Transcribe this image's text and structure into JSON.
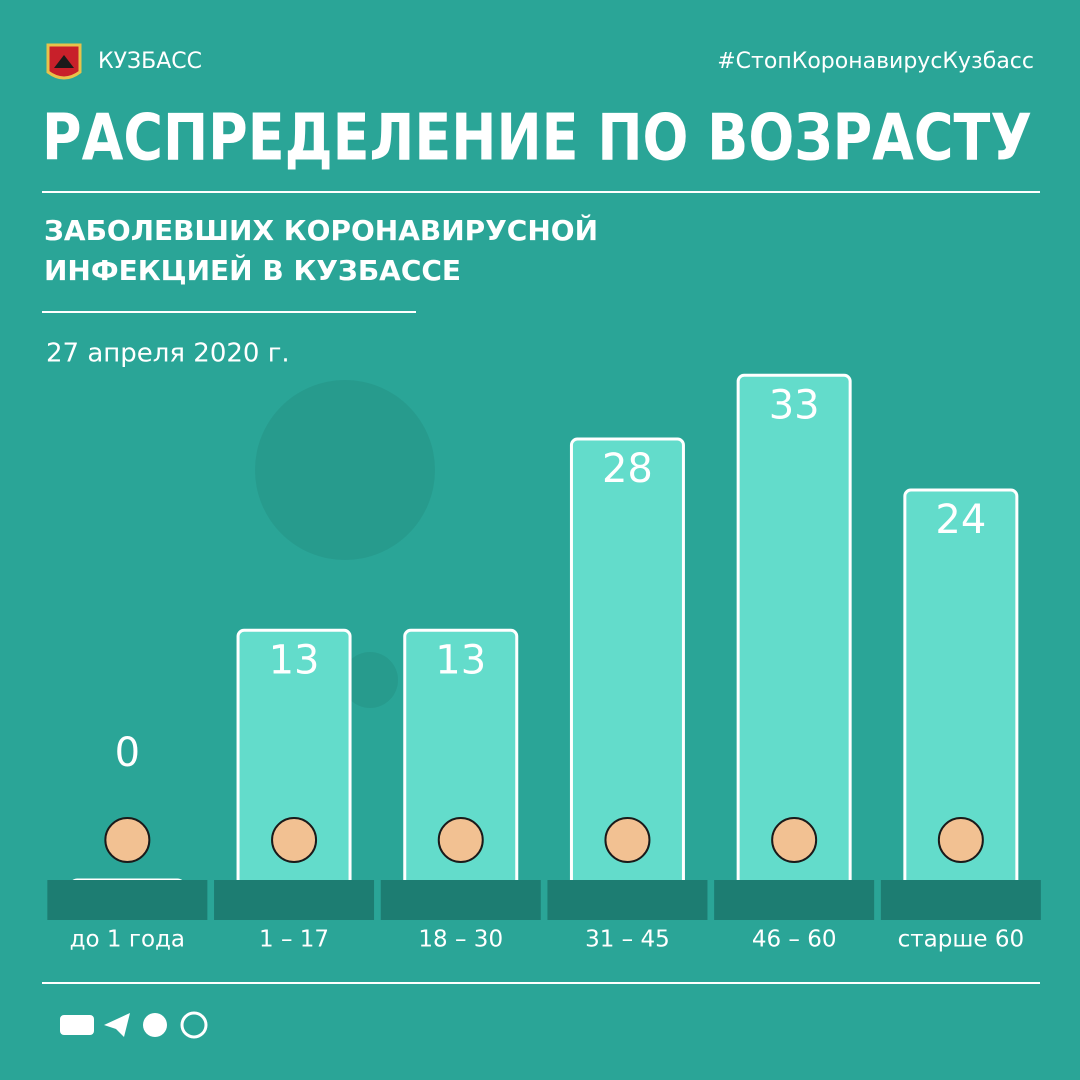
{
  "chart_data": {
    "type": "bar",
    "brand": "КУЗБАСС",
    "hashtag": "#СтопКоронавирусКузбасс",
    "title": "РАСПРЕДЕЛЕНИЕ ПО ВОЗРАСТУ",
    "subtitle": [
      "ЗАБОЛЕВШИХ КОРОНАВИРУСНОЙ",
      "ИНФЕКЦИЕЙ В КУЗБАССЕ"
    ],
    "date": "27 апреля 2020 г.",
    "categories": [
      "до 1 года",
      "1 – 17",
      "18 – 30",
      "31 – 45",
      "46 – 60",
      "старше 60"
    ],
    "values": [
      0,
      13,
      13,
      28,
      33,
      24
    ],
    "color": "#63dccb"
  }
}
